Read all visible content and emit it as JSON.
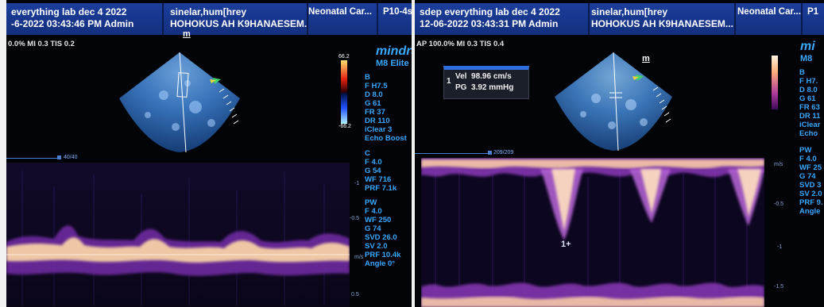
{
  "left": {
    "header": {
      "lab": "everything lab dec 4 2022",
      "datetime": "-6-2022 03:43:46 PM  Admin",
      "patient_name": "sinelar,hum[hrey",
      "patient_id": "HOHOKUS AH K9HANAESEM...",
      "exam": "Neonatal Car...",
      "probe": "P10-4s"
    },
    "status": "0.0%  MI 0.3  TIS 0.2",
    "logo_mark": "m",
    "brand_name": "mindra",
    "brand_model": "M8 Elite",
    "color_scale_top": "66.2",
    "color_scale_bottom": "-66.2",
    "track_label": "40/40",
    "b_params": [
      "B",
      "F H7.5",
      "D 8.0",
      "G 61",
      "FR 37",
      "DR 110",
      "iClear 3",
      "Echo Boost"
    ],
    "c_params": [
      "C",
      "F 4.0",
      "G 54",
      "WF 716",
      "PRF 7.1k"
    ],
    "pw_params": [
      "PW",
      "F 4.0",
      "WF 250",
      "G 74",
      "SVD 26.0",
      "SV 2.0",
      "PRF 10.4k",
      "Angle 0°"
    ],
    "axis": {
      "minus1": "-1",
      "minus05": "-0.5",
      "ms": "m/s",
      "plus05": "0.5"
    }
  },
  "right": {
    "header": {
      "lab": "sdep everything lab dec 4 2022",
      "datetime": "12-06-2022 03:43:31 PM  Admin",
      "patient_name": "sinelar,hum[hrey",
      "patient_id": "HOHOKUS AH K9HANAESEM...",
      "exam": "Neonatal Car...",
      "probe": "P1"
    },
    "status": "AP 100.0%  MI 0.3  TIS 0.4",
    "logo_mark": "m",
    "brand_name": "mi",
    "brand_model": "M8",
    "track_label": "209/209",
    "measurement": {
      "index": "1",
      "vel_label": "Vel",
      "vel_value": "98.96 cm/s",
      "pg_label": "PG",
      "pg_value": "3.92 mmHg"
    },
    "cursor_label": "1+",
    "b_params": [
      "B",
      "F H7.",
      "D 8.0",
      "G 61",
      "FR 63",
      "DR 11",
      "iClear",
      "Echo"
    ],
    "pw_params": [
      "PW",
      "F 4.0",
      "WF 25",
      "G 74",
      "SVD 3",
      "SV 2.0",
      "PRF 9.",
      "Angle"
    ],
    "axis": {
      "ms": "m/s",
      "minus05": "-0.5",
      "minus1": "-1",
      "minus15": "-1.5"
    }
  },
  "colors": {
    "header_blue": "#1b3e9c",
    "param_blue": "#3aa8ff",
    "echo_blue": "#4f8fd0",
    "doppler_orange": "#ffd9a8",
    "doppler_purple": "#7a2fb0"
  }
}
